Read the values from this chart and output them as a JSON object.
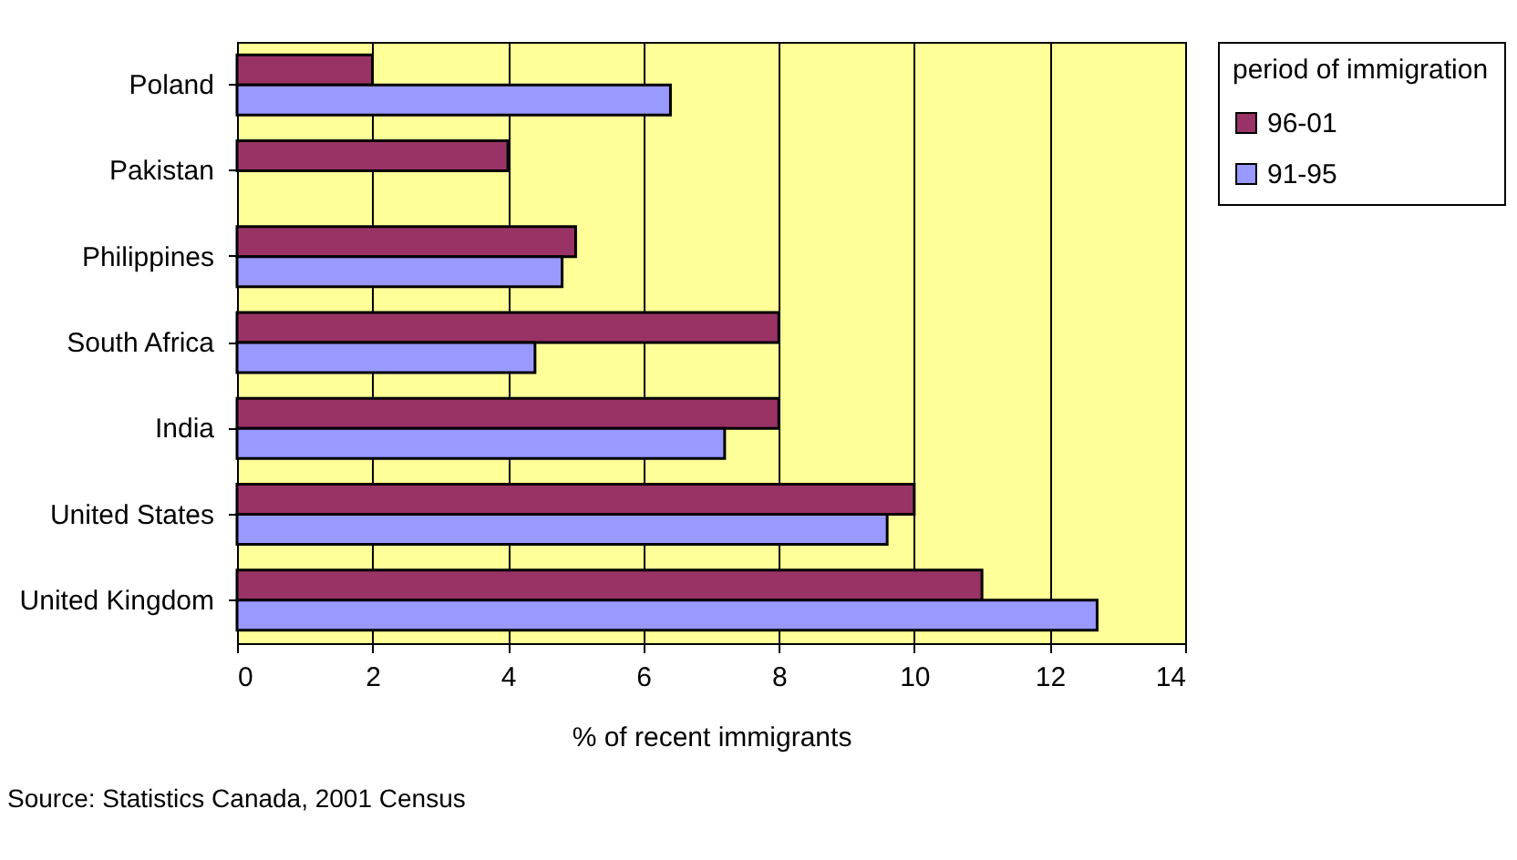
{
  "chart_data": {
    "type": "bar",
    "orientation": "horizontal",
    "categories": [
      "Poland",
      "Pakistan",
      "Philippines",
      "South Africa",
      "India",
      "United States",
      "United Kingdom"
    ],
    "series": [
      {
        "name": "96-01",
        "color": "#993366",
        "values": [
          2,
          4,
          5,
          8,
          8,
          10,
          11
        ]
      },
      {
        "name": "91-95",
        "color": "#9999ff",
        "values": [
          6.4,
          null,
          4.8,
          4.4,
          7.2,
          9.6,
          12.7
        ]
      }
    ],
    "xlim": [
      0,
      14
    ],
    "xticks": [
      0,
      2,
      4,
      6,
      8,
      10,
      12,
      14
    ],
    "xlabel": "% of recent immigrants",
    "legend_title": "period of immigration",
    "legend": "right",
    "grid": "x",
    "annotations": [
      "Source: Statistics Canada, 2001 Census"
    ]
  }
}
